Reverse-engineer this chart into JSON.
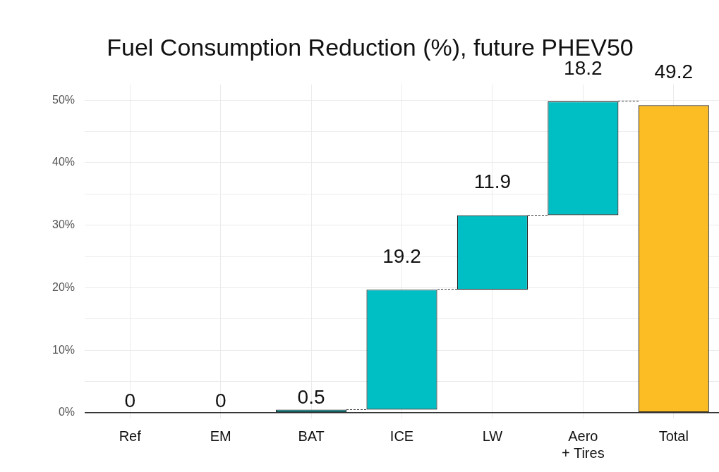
{
  "chart_data": {
    "type": "bar",
    "title": "Fuel Consumption Reduction (%), future PHEV50",
    "categories": [
      "Ref",
      "EM",
      "BAT",
      "ICE",
      "LW",
      "Aero\n+ Tires",
      "Total"
    ],
    "values": [
      0,
      0,
      0.5,
      19.2,
      11.9,
      18.2,
      49.2
    ],
    "base": [
      null,
      null,
      null,
      0.5,
      19.7,
      31.6,
      null
    ],
    "colors": [
      "#00bfc4",
      "#00bfc4",
      "#00bfc4",
      "#00bfc4",
      "#00bfc4",
      "#00bfc4",
      "#fbbc24"
    ],
    "data_labels": true,
    "ylim": [
      0,
      52.5
    ],
    "yticks": [
      {
        "value": 0,
        "label": "0%"
      },
      {
        "value": 5,
        "label": null
      },
      {
        "value": 10,
        "label": "10%"
      },
      {
        "value": 15,
        "label": null
      },
      {
        "value": 20,
        "label": "20%"
      },
      {
        "value": 25,
        "label": null
      },
      {
        "value": 30,
        "label": "30%"
      },
      {
        "value": 35,
        "label": null
      },
      {
        "value": 40,
        "label": "40%"
      },
      {
        "value": 45,
        "label": null
      },
      {
        "value": 50,
        "label": "50%"
      }
    ],
    "grid": true
  }
}
